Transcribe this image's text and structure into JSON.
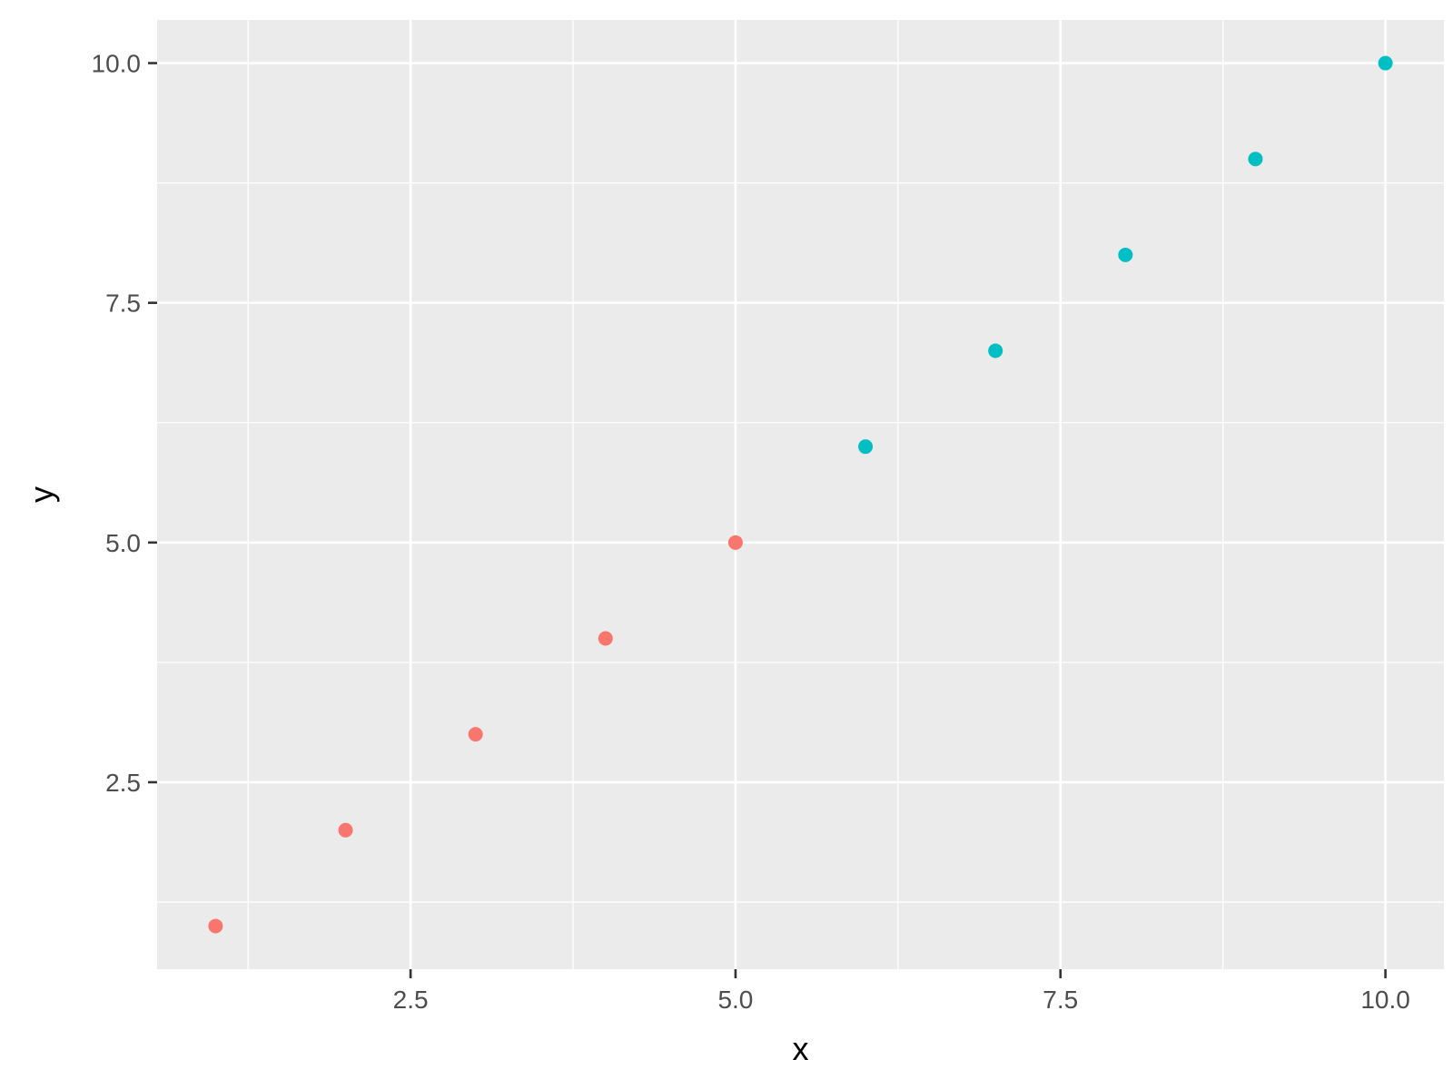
{
  "chart_data": {
    "type": "scatter",
    "title": "",
    "xlabel": "x",
    "ylabel": "y",
    "xlim": [
      0.55,
      10.45
    ],
    "ylim": [
      0.55,
      10.45
    ],
    "x_ticks": [
      2.5,
      5.0,
      7.5,
      10.0
    ],
    "y_ticks": [
      2.5,
      5.0,
      7.5,
      10.0
    ],
    "x_tick_labels": [
      "2.5",
      "5.0",
      "7.5",
      "10.0"
    ],
    "y_tick_labels": [
      "2.5",
      "5.0",
      "7.5",
      "10.0"
    ],
    "grid": true,
    "legend": "none",
    "series": [
      {
        "color": "#F8766D",
        "x": [
          1,
          2,
          3,
          4,
          5
        ],
        "y": [
          1,
          2,
          3,
          4,
          5
        ]
      },
      {
        "color": "#00BFC4",
        "x": [
          6,
          7,
          8,
          9,
          10
        ],
        "y": [
          6,
          7,
          8,
          9,
          10
        ]
      }
    ],
    "panel_background": "#EBEBEB"
  }
}
